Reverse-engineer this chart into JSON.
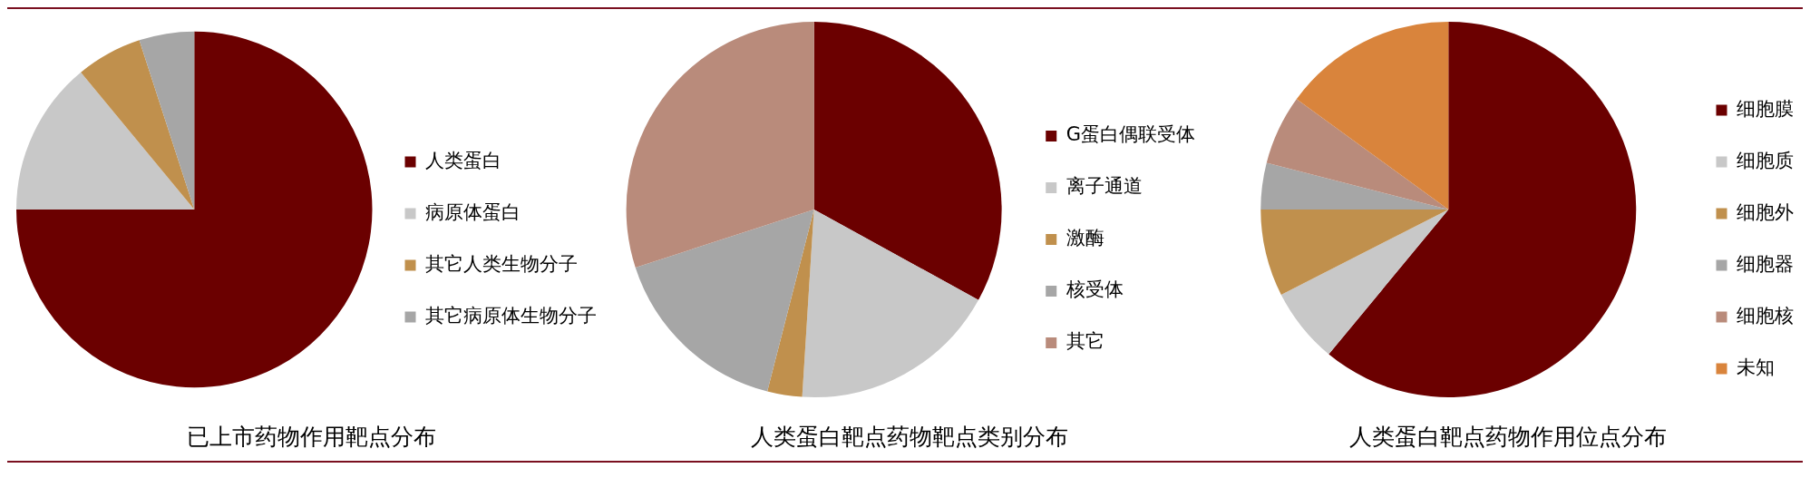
{
  "chart_data": [
    {
      "type": "pie",
      "title": "已上市药物作用靶点分布",
      "categories": [
        "人类蛋白",
        "病原体蛋白",
        "其它人类生物分子",
        "其它病原体生物分子"
      ],
      "values": [
        75,
        14,
        6,
        5
      ],
      "colors": [
        "#6b0000",
        "#c8c8c8",
        "#c0904d",
        "#a6a6a6"
      ],
      "legend": "right"
    },
    {
      "type": "pie",
      "title": "人类蛋白靶点药物靶点类别分布",
      "categories": [
        "G蛋白偶联受体",
        "离子通道",
        "激酶",
        "核受体",
        "其它"
      ],
      "values": [
        33,
        18,
        3,
        16,
        30
      ],
      "colors": [
        "#6b0000",
        "#c8c8c8",
        "#c0904d",
        "#a6a6a6",
        "#b98b7b"
      ],
      "legend": "right"
    },
    {
      "type": "pie",
      "title": "人类蛋白靶点药物作用位点分布",
      "categories": [
        "细胞膜",
        "细胞质",
        "细胞外",
        "细胞器",
        "细胞核",
        "未知"
      ],
      "values": [
        61,
        6.5,
        7.5,
        4,
        6,
        15
      ],
      "colors": [
        "#6b0000",
        "#c8c8c8",
        "#c0904d",
        "#a6a6a6",
        "#b98b7b",
        "#d9843c"
      ],
      "legend": "right"
    }
  ]
}
